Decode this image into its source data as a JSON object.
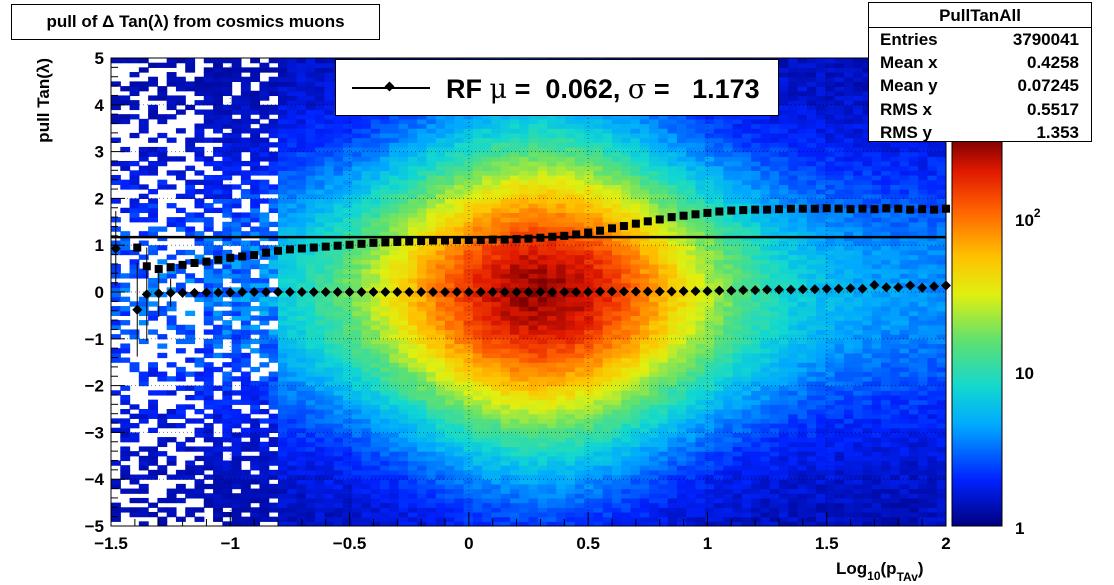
{
  "title": "pull of Δ Tan(λ) from cosmics muons",
  "stats": {
    "name": "PullTanAll",
    "rows": [
      {
        "label": "Entries",
        "value": "3790041"
      },
      {
        "label": "Mean x",
        "value": "0.4258"
      },
      {
        "label": "Mean y",
        "value": "0.07245"
      },
      {
        "label": "RMS x",
        "value": "0.5517"
      },
      {
        "label": "RMS y",
        "value": "1.353"
      }
    ]
  },
  "legend": {
    "prefix": "RF ",
    "mu_symbol": "μ",
    "mu_text": " =  0.062, ",
    "sigma_symbol": "σ",
    "sigma_text": " =   1.173"
  },
  "chart_data": {
    "type": "heatmap",
    "title": "pull of Δ Tan(λ) from cosmics muons",
    "xlabel": "Log10(pTAv)",
    "ylabel": "pull Tan(λ)",
    "xlim": [
      -1.5,
      2
    ],
    "ylim": [
      -5,
      5
    ],
    "x_ticks": [
      "−1.5",
      "−1",
      "−0.5",
      "0",
      "0.5",
      "1",
      "1.5",
      "2"
    ],
    "y_ticks": [
      "−5",
      "−4",
      "−3",
      "−2",
      "−1",
      "0",
      "1",
      "2",
      "3",
      "4",
      "5"
    ],
    "z_scale": "log",
    "z_ticks": [
      "1",
      "10",
      "10^2"
    ],
    "grid": true,
    "reference_line_y": 1.173,
    "mean_series": {
      "x": [
        -1.48,
        -1.39,
        -1.35,
        -1.3,
        -1.25,
        -1.2,
        -1.15,
        -1.1,
        -1.05,
        -1.0,
        -0.95,
        -0.9,
        -0.85,
        -0.8,
        -0.75,
        -0.7,
        -0.65,
        -0.6,
        -0.55,
        -0.5,
        -0.45,
        -0.4,
        -0.35,
        -0.3,
        -0.25,
        -0.2,
        -0.15,
        -0.1,
        -0.05,
        0.0,
        0.05,
        0.1,
        0.15,
        0.2,
        0.25,
        0.3,
        0.35,
        0.4,
        0.45,
        0.5,
        0.55,
        0.6,
        0.65,
        0.7,
        0.75,
        0.8,
        0.85,
        0.9,
        0.95,
        1.0,
        1.05,
        1.1,
        1.15,
        1.2,
        1.25,
        1.3,
        1.35,
        1.4,
        1.45,
        1.5,
        1.55,
        1.6,
        1.65,
        1.7,
        1.75,
        1.8,
        1.85,
        1.9,
        1.95,
        2.0
      ],
      "y": [
        0.93,
        -0.38,
        -0.05,
        -0.03,
        -0.02,
        -0.02,
        -0.02,
        -0.01,
        -0.01,
        -0.01,
        0.0,
        0.0,
        0.0,
        0.0,
        0.0,
        0.0,
        0.0,
        0.0,
        0.0,
        0.0,
        0.0,
        0.0,
        0.0,
        0.0,
        0.0,
        0.0,
        0.0,
        0.0,
        0.0,
        0.0,
        0.0,
        0.0,
        0.0,
        0.0,
        0.0,
        0.0,
        0.0,
        0.0,
        0.0,
        0.0,
        0.01,
        0.01,
        0.01,
        0.01,
        0.01,
        0.01,
        0.01,
        0.02,
        0.02,
        0.02,
        0.03,
        0.03,
        0.04,
        0.04,
        0.05,
        0.05,
        0.05,
        0.06,
        0.06,
        0.07,
        0.07,
        0.08,
        0.07,
        0.15,
        0.1,
        0.1,
        0.14,
        0.09,
        0.12,
        0.14
      ],
      "y_err": [
        0.8,
        1.0,
        1.0,
        0.5,
        0.3,
        0.1,
        0.05,
        0.05,
        0.04,
        0.03,
        0.02,
        0.02,
        0.02,
        0.02,
        0.02,
        0.02,
        0.01,
        0.01,
        0.01,
        0.01,
        0.01,
        0.01,
        0.01,
        0.01,
        0.01,
        0.01,
        0.01,
        0.01,
        0.01,
        0.01,
        0.01,
        0.01,
        0.01,
        0.01,
        0.01,
        0.01,
        0.01,
        0.01,
        0.01,
        0.01,
        0.01,
        0.01,
        0.01,
        0.01,
        0.01,
        0.01,
        0.01,
        0.01,
        0.01,
        0.01,
        0.01,
        0.01,
        0.01,
        0.01,
        0.01,
        0.01,
        0.01,
        0.01,
        0.01,
        0.01,
        0.01,
        0.01,
        0.01,
        0.02,
        0.02,
        0.02,
        0.02,
        0.02,
        0.02,
        0.02
      ]
    },
    "sigma_series": {
      "x": [
        -1.39,
        -1.35,
        -1.3,
        -1.25,
        -1.2,
        -1.15,
        -1.1,
        -1.05,
        -1.0,
        -0.95,
        -0.9,
        -0.85,
        -0.8,
        -0.75,
        -0.7,
        -0.65,
        -0.6,
        -0.55,
        -0.5,
        -0.45,
        -0.4,
        -0.35,
        -0.3,
        -0.25,
        -0.2,
        -0.15,
        -0.1,
        -0.05,
        0.0,
        0.05,
        0.1,
        0.15,
        0.2,
        0.25,
        0.3,
        0.35,
        0.4,
        0.45,
        0.5,
        0.55,
        0.6,
        0.65,
        0.7,
        0.75,
        0.8,
        0.85,
        0.9,
        0.95,
        1.0,
        1.05,
        1.1,
        1.15,
        1.2,
        1.25,
        1.3,
        1.35,
        1.4,
        1.45,
        1.5,
        1.55,
        1.6,
        1.65,
        1.7,
        1.75,
        1.8,
        1.85,
        1.9,
        1.95,
        2.0
      ],
      "y": [
        0.95,
        0.55,
        0.49,
        0.53,
        0.58,
        0.62,
        0.65,
        0.69,
        0.73,
        0.76,
        0.79,
        0.84,
        0.88,
        0.91,
        0.93,
        0.95,
        0.97,
        0.99,
        1.01,
        1.03,
        1.05,
        1.06,
        1.07,
        1.08,
        1.09,
        1.1,
        1.1,
        1.11,
        1.11,
        1.11,
        1.12,
        1.12,
        1.13,
        1.14,
        1.16,
        1.18,
        1.2,
        1.23,
        1.27,
        1.31,
        1.36,
        1.41,
        1.46,
        1.51,
        1.55,
        1.6,
        1.63,
        1.66,
        1.69,
        1.72,
        1.74,
        1.75,
        1.76,
        1.76,
        1.77,
        1.78,
        1.78,
        1.78,
        1.79,
        1.78,
        1.77,
        1.78,
        1.77,
        1.79,
        1.78,
        1.76,
        1.77,
        1.76,
        1.78
      ]
    }
  }
}
